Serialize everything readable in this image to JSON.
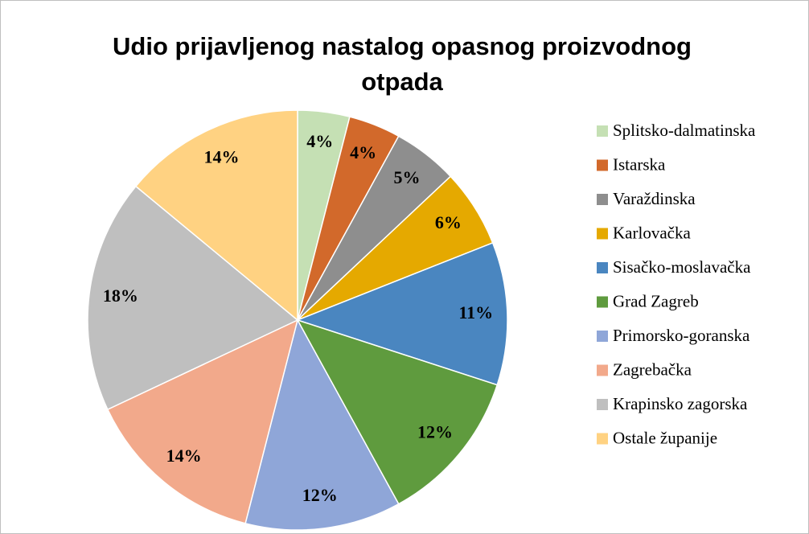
{
  "chart_data": {
    "type": "pie",
    "title": "Udio prijavljenog nastalog opasnog proizvodnog otpada",
    "categories": [
      "Splitsko-dalmatinska",
      "Istarska",
      "Varaždinska",
      "Karlovačka",
      "Sisačko-moslavačka",
      "Grad Zagreb",
      "Primorsko-goranska",
      "Zagrebačka",
      "Krapinsko zagorska",
      "Ostale županije"
    ],
    "values": [
      4,
      4,
      5,
      6,
      11,
      12,
      12,
      14,
      18,
      14
    ],
    "value_labels": [
      "4%",
      "4%",
      "5%",
      "6%",
      "11%",
      "12%",
      "12%",
      "14%",
      "18%",
      "14%"
    ],
    "colors": [
      "#c5e0b4",
      "#d2692b",
      "#8e8e8e",
      "#e5a900",
      "#4a86c0",
      "#5f9b3e",
      "#8fa6d8",
      "#f2a98b",
      "#bfbfbf",
      "#ffd282"
    ],
    "legend": "right"
  }
}
